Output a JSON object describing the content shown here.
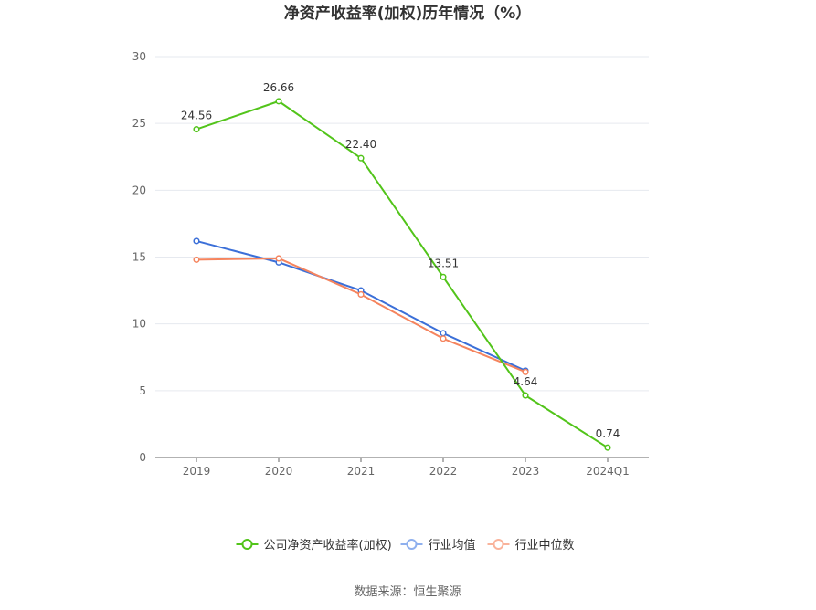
{
  "chart_data": {
    "type": "line",
    "title": "净资产收益率(加权)历年情况（%）",
    "categories": [
      "2019",
      "2020",
      "2021",
      "2022",
      "2023",
      "2024Q1"
    ],
    "ylim": [
      0,
      30
    ],
    "yticks": [
      0,
      5,
      10,
      15,
      20,
      25,
      30
    ],
    "grid": true,
    "legend_position": "bottom",
    "series": [
      {
        "name": "公司净资产收益率(加权)",
        "color": "#52c41a",
        "values": [
          24.56,
          26.66,
          22.4,
          13.51,
          4.64,
          0.74
        ],
        "labels": [
          "24.56",
          "26.66",
          "22.40",
          "13.51",
          "4.64",
          "0.74"
        ]
      },
      {
        "name": "行业均值",
        "color": "#3b6fd8",
        "values": [
          16.2,
          14.6,
          12.5,
          9.3,
          6.5,
          null
        ]
      },
      {
        "name": "行业中位数",
        "color": "#f5845e",
        "values": [
          14.8,
          14.9,
          12.2,
          8.9,
          6.4,
          null
        ]
      }
    ]
  },
  "footer": {
    "source": "数据来源：恒生聚源"
  }
}
